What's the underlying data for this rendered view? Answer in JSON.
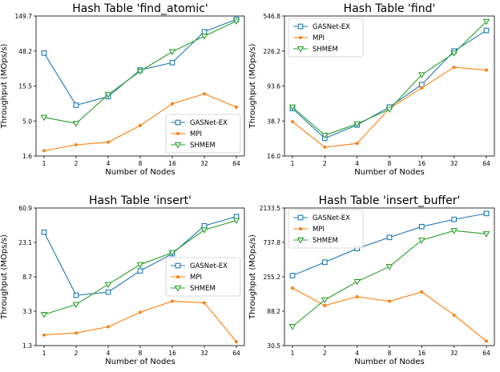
{
  "x_categories": [
    "1",
    "2",
    "4",
    "8",
    "16",
    "32",
    "64"
  ],
  "chart_data": [
    {
      "type": "line",
      "title": "Hash Table 'find_atomic'",
      "xlabel": "Number of Nodes",
      "ylabel": "Throughput (MOps/s)",
      "yscale": "log",
      "ylim": [
        1.6,
        149.7
      ],
      "yticks": [
        "1.6",
        "5.0",
        "15.5",
        "48.2",
        "149.7"
      ],
      "legend_position": "lower-right",
      "series": [
        {
          "name": "GASNet-EX",
          "color": "#1f77b4",
          "marker": "square",
          "values": [
            45,
            8.3,
            11.0,
            26.0,
            33.0,
            90.0,
            134.0
          ]
        },
        {
          "name": "MPI",
          "color": "#ff7f0e",
          "marker": "dot",
          "values": [
            1.9,
            2.3,
            2.5,
            4.3,
            8.7,
            12.0,
            7.8
          ]
        },
        {
          "name": "SHMEM",
          "color": "#2ca02c",
          "marker": "triangle-down",
          "values": [
            5.6,
            4.6,
            11.7,
            25.0,
            47.0,
            78.0,
            127.0
          ]
        }
      ]
    },
    {
      "type": "line",
      "title": "Hash Table 'find'",
      "xlabel": "Number of Nodes",
      "ylabel": "Throughput (MOps/s)",
      "yscale": "log",
      "ylim": [
        16.0,
        546.8
      ],
      "yticks": [
        "16.0",
        "38.7",
        "93.6",
        "226.2",
        "546.8"
      ],
      "legend_position": "upper-left",
      "series": [
        {
          "name": "GASNet-EX",
          "color": "#1f77b4",
          "marker": "square",
          "values": [
            53,
            25,
            35,
            55,
            97,
            226,
            380
          ]
        },
        {
          "name": "MPI",
          "color": "#ff7f0e",
          "marker": "dot",
          "values": [
            38,
            20,
            22,
            53,
            89,
            150,
            140
          ]
        },
        {
          "name": "SHMEM",
          "color": "#2ca02c",
          "marker": "triangle-down",
          "values": [
            55,
            27,
            36,
            52,
            124,
            215,
            476
          ]
        }
      ]
    },
    {
      "type": "line",
      "title": "Hash Table 'insert'",
      "xlabel": "Number of Nodes",
      "ylabel": "Throughput (MOps/s)",
      "yscale": "log",
      "ylim": [
        1.3,
        60.9
      ],
      "yticks": [
        "1.3",
        "3.3",
        "8.7",
        "23.1",
        "60.9"
      ],
      "legend_position": "center-right",
      "series": [
        {
          "name": "GASNet-EX",
          "color": "#1f77b4",
          "marker": "square",
          "values": [
            31,
            5.3,
            5.8,
            10.5,
            17.0,
            37.0,
            48.0
          ]
        },
        {
          "name": "MPI",
          "color": "#ff7f0e",
          "marker": "dot",
          "values": [
            1.75,
            1.85,
            2.2,
            3.3,
            4.5,
            4.3,
            1.45
          ]
        },
        {
          "name": "SHMEM",
          "color": "#2ca02c",
          "marker": "triangle-down",
          "values": [
            3.1,
            4.1,
            7.2,
            12.5,
            17.5,
            33.0,
            43.0
          ]
        }
      ]
    },
    {
      "type": "line",
      "title": "Hash Table 'insert_buffer'",
      "xlabel": "Number of Nodes",
      "ylabel": "Throughput (MOps/s)",
      "yscale": "log",
      "ylim": [
        30.5,
        2133.5
      ],
      "yticks": [
        "30.5",
        "88.2",
        "255.2",
        "737.8",
        "2133.5"
      ],
      "legend_position": "upper-left",
      "series": [
        {
          "name": "GASNet-EX",
          "color": "#1f77b4",
          "marker": "square",
          "values": [
            265,
            400,
            610,
            860,
            1200,
            1500,
            1800
          ]
        },
        {
          "name": "MPI",
          "color": "#ff7f0e",
          "marker": "dot",
          "values": [
            180,
            105,
            138,
            120,
            160,
            78,
            35
          ]
        },
        {
          "name": "SHMEM",
          "color": "#2ca02c",
          "marker": "triangle-down",
          "values": [
            55,
            125,
            220,
            350,
            790,
            1060,
            960
          ]
        }
      ]
    }
  ]
}
